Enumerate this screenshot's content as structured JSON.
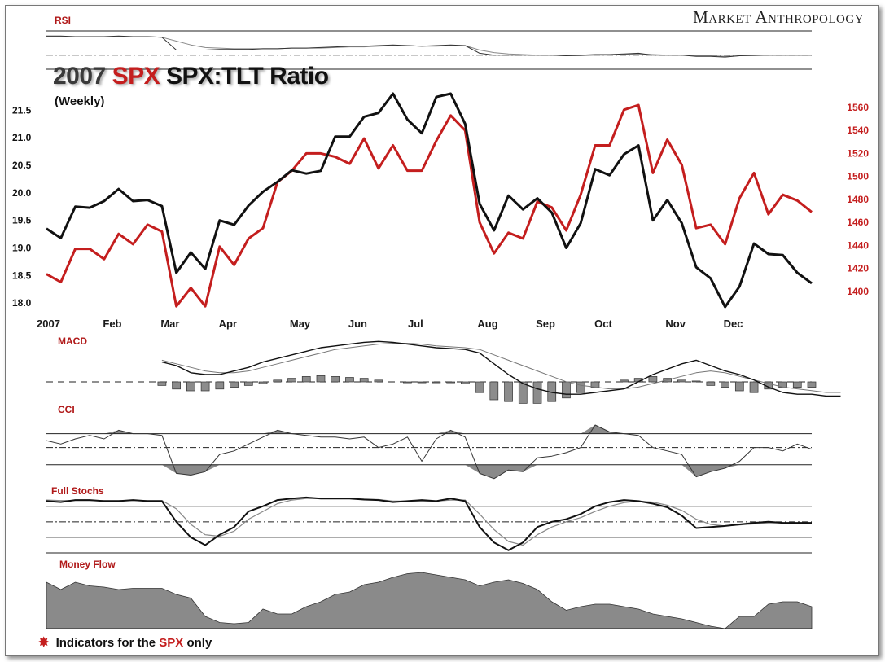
{
  "brand": "Market Anthropology",
  "title": {
    "year": "2007",
    "spx": "SPX",
    "rest": "SPX:TLT Ratio",
    "sub": "(Weekly)"
  },
  "footer": {
    "prefix": "Indicators for the",
    "spx": "SPX",
    "suffix": "only",
    "icon": "asterisk-icon"
  },
  "colors": {
    "ratio": "#111111",
    "spx": "#c41e1e",
    "label": "#b01818",
    "fill": "#8a8a8a"
  },
  "chart_data": [
    {
      "type": "line",
      "panel": "main",
      "x_labels": [
        "2007",
        "Feb",
        "Mar",
        "Apr",
        "May",
        "Jun",
        "Jul",
        "Aug",
        "Sep",
        "Oct",
        "Nov",
        "Dec"
      ],
      "x_label_weeks": [
        0,
        4,
        8,
        12,
        17,
        21,
        25,
        30,
        34,
        38,
        43,
        47
      ],
      "y_left": {
        "ticks": [
          "21.5",
          "21.0",
          "20.5",
          "20.0",
          "19.5",
          "19.0",
          "18.5",
          "18.0"
        ],
        "range": [
          17.9,
          21.8
        ]
      },
      "y_right": {
        "ticks": [
          "1560",
          "1540",
          "1520",
          "1500",
          "1480",
          "1460",
          "1440",
          "1420",
          "1400"
        ],
        "range": [
          1385,
          1572
        ]
      },
      "series": [
        {
          "axis": "left",
          "values": [
            19.35,
            19.18,
            19.75,
            19.73,
            19.85,
            20.07,
            19.85,
            19.87,
            19.76,
            18.55,
            18.92,
            18.62,
            19.5,
            19.42,
            19.77,
            20.02,
            20.2,
            20.41,
            20.35,
            20.4,
            21.02,
            21.02,
            21.38,
            21.45,
            21.8,
            21.33,
            21.08,
            21.74,
            21.8,
            21.25,
            19.8,
            19.32,
            19.95,
            19.7,
            19.9,
            19.64,
            19.0,
            19.45,
            20.43,
            20.32,
            20.7,
            20.86,
            19.5,
            19.87,
            19.45,
            18.65,
            18.45,
            17.93,
            18.3,
            19.08,
            18.89,
            18.87,
            18.55,
            18.36
          ]
        },
        {
          "axis": "right",
          "values": [
            1415,
            1408,
            1437,
            1437,
            1428,
            1450,
            1441,
            1458,
            1452,
            1387,
            1403,
            1387,
            1439,
            1423,
            1446,
            1455,
            1495,
            1505,
            1520,
            1520,
            1517,
            1511,
            1533,
            1507,
            1527,
            1505,
            1505,
            1531,
            1553,
            1540,
            1460,
            1433,
            1451,
            1446,
            1478,
            1473,
            1453,
            1484,
            1527,
            1527,
            1558,
            1562,
            1503,
            1532,
            1510,
            1455,
            1458,
            1441,
            1481,
            1503,
            1467,
            1484,
            1479,
            1469
          ]
        }
      ]
    },
    {
      "type": "line",
      "panel": "RSI",
      "title": "RSI",
      "values": [
        52,
        52,
        51,
        51,
        51,
        52,
        51,
        51,
        50,
        30,
        30,
        30,
        31,
        31,
        31,
        32,
        32,
        33,
        33,
        34,
        35,
        36,
        36,
        37,
        38,
        37,
        36,
        37,
        38,
        37,
        25,
        22,
        22,
        22,
        22,
        22,
        21,
        22,
        23,
        23,
        24,
        25,
        22,
        22,
        22,
        20,
        20,
        19,
        21,
        22,
        22,
        22,
        22,
        22
      ],
      "values2": [
        51,
        51,
        51,
        51,
        51,
        51,
        51,
        51,
        50,
        44,
        38,
        34,
        33,
        32,
        32,
        32,
        32,
        33,
        33,
        33,
        34,
        35,
        35,
        36,
        37,
        37,
        36,
        36,
        37,
        37,
        30,
        26,
        24,
        23,
        22,
        22,
        21,
        21,
        22,
        22,
        23,
        24,
        23,
        22,
        22,
        21,
        21,
        20,
        21,
        21,
        22,
        22,
        22,
        22
      ]
    },
    {
      "type": "line",
      "panel": "MACD",
      "title": "MACD",
      "start_week": 8,
      "line1": [
        0.2,
        0.0,
        -0.4,
        -0.5,
        -0.5,
        -0.3,
        -0.1,
        0.2,
        0.4,
        0.6,
        0.8,
        1.0,
        1.1,
        1.2,
        1.3,
        1.35,
        1.3,
        1.2,
        1.1,
        1.0,
        0.95,
        0.9,
        0.7,
        0.1,
        -0.5,
        -1.0,
        -1.3,
        -1.5,
        -1.6,
        -1.6,
        -1.5,
        -1.4,
        -1.3,
        -0.9,
        -0.5,
        -0.2,
        0.1,
        0.3,
        0.0,
        -0.3,
        -0.5,
        -0.8,
        -1.2,
        -1.5,
        -1.6,
        -1.6,
        -1.7,
        -1.7
      ],
      "line2": [
        0.3,
        0.1,
        -0.1,
        -0.3,
        -0.4,
        -0.4,
        -0.3,
        -0.1,
        0.1,
        0.3,
        0.5,
        0.7,
        0.9,
        1.0,
        1.1,
        1.2,
        1.25,
        1.25,
        1.2,
        1.1,
        1.05,
        1.0,
        0.9,
        0.6,
        0.3,
        0.0,
        -0.3,
        -0.6,
        -0.9,
        -1.1,
        -1.2,
        -1.3,
        -1.3,
        -1.2,
        -1.0,
        -0.8,
        -0.6,
        -0.4,
        -0.3,
        -0.4,
        -0.6,
        -0.8,
        -1.0,
        -1.2,
        -1.3,
        -1.4,
        -1.5,
        -1.5
      ],
      "histogram": [
        0,
        0,
        0,
        0,
        0,
        0,
        0,
        0,
        -0.2,
        -0.4,
        -0.5,
        -0.5,
        -0.4,
        -0.3,
        -0.2,
        -0.1,
        0.1,
        0.2,
        0.3,
        0.35,
        0.3,
        0.25,
        0.2,
        0.1,
        0.0,
        -0.05,
        -0.05,
        -0.05,
        -0.05,
        -0.1,
        -0.6,
        -1.0,
        -1.1,
        -1.2,
        -1.2,
        -1.1,
        -0.9,
        -0.6,
        -0.3,
        0.0,
        0.1,
        0.2,
        0.3,
        0.2,
        0.1,
        0.05,
        -0.2,
        -0.3,
        -0.5,
        -0.6,
        -0.4,
        -0.3,
        -0.3,
        -0.3
      ]
    },
    {
      "type": "area",
      "panel": "CCI",
      "title": "CCI",
      "values": [
        140,
        120,
        150,
        170,
        150,
        200,
        180,
        180,
        170,
        -50,
        -60,
        -40,
        60,
        80,
        120,
        160,
        200,
        180,
        170,
        160,
        160,
        150,
        160,
        100,
        120,
        160,
        20,
        150,
        200,
        160,
        -50,
        -80,
        -30,
        -40,
        40,
        50,
        70,
        100,
        230,
        190,
        180,
        170,
        100,
        80,
        60,
        -70,
        -40,
        -20,
        20,
        100,
        100,
        80,
        120,
        90
      ],
      "ref_lines": [
        180,
        100,
        0
      ]
    },
    {
      "type": "line",
      "panel": "Full Stochs",
      "title": "Full Stochs",
      "values": [
        90,
        88,
        92,
        92,
        90,
        90,
        92,
        90,
        90,
        50,
        20,
        5,
        25,
        40,
        70,
        80,
        92,
        95,
        97,
        95,
        95,
        95,
        93,
        92,
        88,
        90,
        92,
        90,
        95,
        90,
        40,
        10,
        -5,
        10,
        40,
        50,
        55,
        65,
        80,
        88,
        92,
        90,
        85,
        78,
        62,
        38,
        40,
        42,
        45,
        48,
        50,
        48,
        48,
        48
      ],
      "values2": [
        92,
        91,
        91,
        91,
        91,
        91,
        91,
        91,
        91,
        75,
        45,
        25,
        22,
        32,
        55,
        70,
        85,
        92,
        95,
        95,
        95,
        95,
        94,
        93,
        90,
        90,
        90,
        90,
        92,
        92,
        65,
        35,
        12,
        5,
        25,
        40,
        50,
        58,
        70,
        80,
        87,
        90,
        88,
        82,
        72,
        55,
        45,
        42,
        44,
        46,
        48,
        48,
        48,
        48
      ],
      "ref_lines": [
        80,
        50,
        20
      ]
    },
    {
      "type": "area",
      "panel": "Money Flow",
      "title": "Money Flow",
      "values": [
        58,
        52,
        58,
        55,
        54,
        52,
        53,
        53,
        53,
        48,
        45,
        30,
        25,
        24,
        25,
        36,
        32,
        32,
        38,
        42,
        48,
        50,
        56,
        58,
        62,
        65,
        66,
        64,
        62,
        60,
        55,
        58,
        60,
        57,
        52,
        42,
        35,
        38,
        40,
        40,
        38,
        36,
        32,
        30,
        28,
        25,
        22,
        20,
        30,
        30,
        40,
        42,
        42,
        38
      ],
      "baseline": 20
    }
  ],
  "month_label_positions_note": ""
}
